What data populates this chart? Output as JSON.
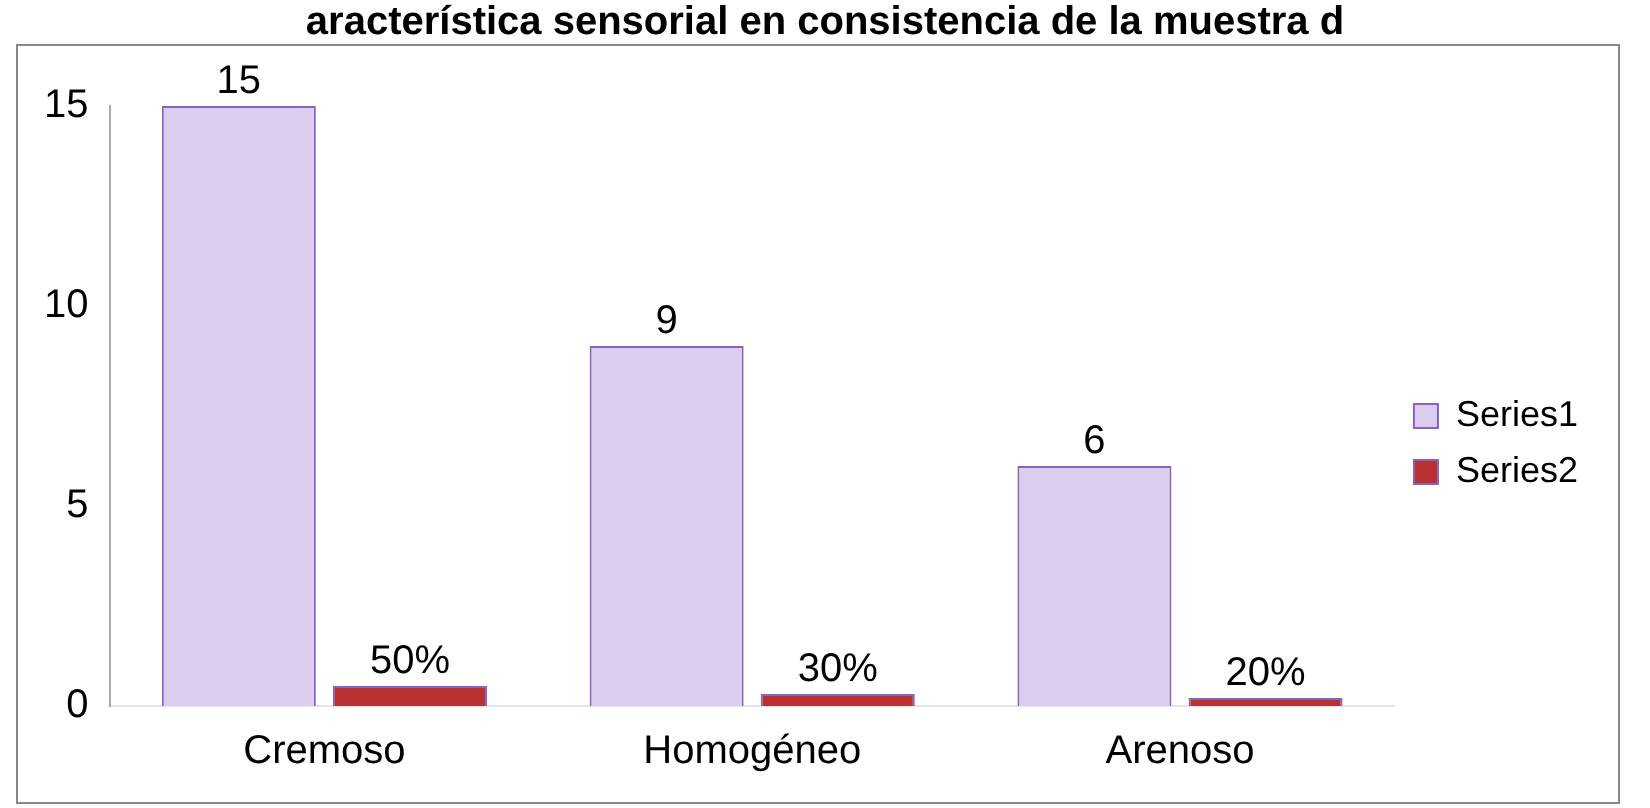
{
  "chart_data": {
    "type": "bar",
    "title": "aracterística sensorial en consistencia de la muestra d",
    "categories": [
      "Cremoso",
      "Homogéneo",
      "Arenoso"
    ],
    "series": [
      {
        "name": "Series1",
        "color": "#dccdf0",
        "values": [
          15,
          9,
          6
        ],
        "value_labels": [
          "15",
          "9",
          "6"
        ]
      },
      {
        "name": "Series2",
        "color": "#b83232",
        "values": [
          0.5,
          0.3,
          0.2
        ],
        "value_labels": [
          "50%",
          "30%",
          "20%"
        ]
      }
    ],
    "ylim": [
      0,
      15
    ],
    "yticks": [
      0,
      5,
      10,
      15
    ],
    "grid": false,
    "legend": "right"
  }
}
